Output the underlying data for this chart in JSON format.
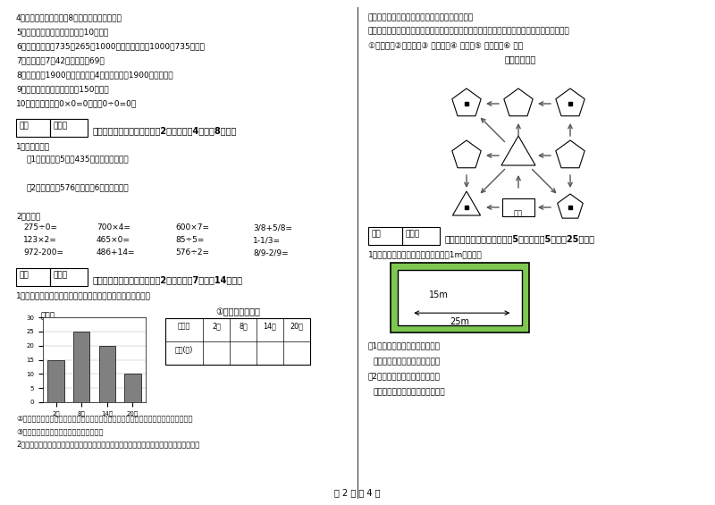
{
  "background_color": "#ffffff",
  "page_number": "第 2 页 共 4 页",
  "left_items": [
    "4．（　　）一个两位数8，积一定也是两为数。",
    "5．（　　）小明家客厅面积是10公顷。",
    "6．（　　）根据735＋265＝1000，可以直接写出1000－735的差。",
    "7．（　　）7个42相加的和是69。",
    "8．（　　）1900年的年份数是4的倍数，所以1900年是闰年。",
    "9．（　　）一本故事书约重150千克。",
    "10．（　　）因为0×0=0，所以0÷0=0。"
  ],
  "sec4_header": "四、看清题目，细心计算（共2小题，每题4分，共8分）。",
  "sec4_q1": "1．列式计算。",
  "sec4_q1_1": "（1）一个数的5倍是435，这个数是多少？",
  "sec4_q1_2": "（2）被除数是576，除数是6，商是多少？",
  "sec4_q2": "2．口算：",
  "calc_rows": [
    [
      "275÷0=",
      "700×4=",
      "600×7=",
      "3/8+5/8="
    ],
    [
      "123×2=",
      "465×0=",
      "85÷5=",
      "1-1/3="
    ],
    [
      "972-200=",
      "486+14=",
      "576÷2=",
      "8/9-2/9="
    ]
  ],
  "sec5_header": "五、认真思考，综合能力（共2小题，每题7分，共14分）。",
  "sec5_q1": "1．下面是气温自测仪上记录的某天四个不同时间的气温情况：",
  "chart_ylabel": "（度）",
  "chart_title": "①根据统计图填表",
  "bar_values": [
    15,
    25,
    20,
    10
  ],
  "bar_labels": [
    "2时",
    "8时",
    "14时",
    "20时"
  ],
  "bar_color": "#808080",
  "ylim": [
    0,
    30
  ],
  "yticks": [
    0,
    5,
    10,
    15,
    20,
    25,
    30
  ],
  "table_header": [
    "时　间",
    "2时",
    "8时",
    "14时",
    "20时"
  ],
  "table_row_label": "气温(度)",
  "sec5_q1_sub2": "②这一天的最高气温是（　　）度，最低气温是（　　）度，平均气温大约（　　）度。",
  "sec5_q1_sub3": "③实际算一算，这天的平均气温是多少度？",
  "sec5_q2": "2．走进动物园大门，正北面是狮子山和熊猫馆，狮子山的东侧是飞禽馆，西侧是颐园，大象",
  "right_intro1": "馆和鱼馆的场地分别在动物园的东北角和西北角。",
  "right_intro2": "　　根据小强的描述，请你把这些动物场馆所在的位置，在动物园的导游图上用序号表示出来。",
  "right_labels": "①狮山　　②熊猫馆　③ 飞禽馆　④ 颐园　⑤ 大象馆　⑥ 鱼馆",
  "map_title": "动物园导游图",
  "sec6_header": "六、活用知识，解决问题（共5小题，每题5分，共25分）。",
  "sec6_q1": "1．在一块长方形的花坛四周，铺上宽1m的小路。",
  "rect_label_w": "25m",
  "rect_label_h": "15m",
  "rect_green": "#7EC850",
  "sec6_q1_sub1": "（1）花坛的面积是多少平方米？",
  "sec6_q1_ans1": "答：花坛的面积是＿＿＿平方米",
  "sec6_q1_sub2": "（2）小路的面积是多少平方米？",
  "sec6_q1_ans2": "答：小路的面积是＿＿＿平方米。"
}
